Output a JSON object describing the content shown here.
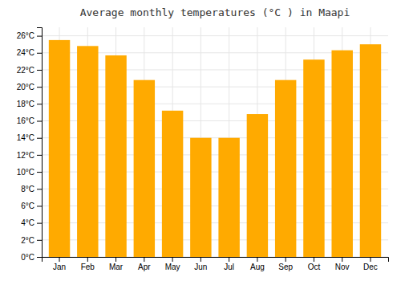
{
  "chart_data": {
    "type": "bar",
    "title": "Average monthly temperatures (°C ) in Maapi",
    "categories": [
      "Jan",
      "Feb",
      "Mar",
      "Apr",
      "May",
      "Jun",
      "Jul",
      "Aug",
      "Sep",
      "Oct",
      "Nov",
      "Dec"
    ],
    "values": [
      25.5,
      24.8,
      23.7,
      20.8,
      17.2,
      14.0,
      14.0,
      16.8,
      20.8,
      23.2,
      24.3,
      25.0
    ],
    "color": "#FFAA00",
    "ylim": [
      0,
      27
    ],
    "yticks": [
      {
        "value": 0,
        "label": "0°C"
      },
      {
        "value": 2,
        "label": "2°C"
      },
      {
        "value": 4,
        "label": "4°C"
      },
      {
        "value": 6,
        "label": "6°C"
      },
      {
        "value": 8,
        "label": "8°C"
      },
      {
        "value": 10,
        "label": "10°C"
      },
      {
        "value": 12,
        "label": "12°C"
      },
      {
        "value": 14,
        "label": "14°C"
      },
      {
        "value": 16,
        "label": "16°C"
      },
      {
        "value": 18,
        "label": "18°C"
      },
      {
        "value": 20,
        "label": "20°C"
      },
      {
        "value": 22,
        "label": "22°C"
      },
      {
        "value": 24,
        "label": "24°C"
      },
      {
        "value": 26,
        "label": "26°C"
      }
    ],
    "grid": true
  }
}
